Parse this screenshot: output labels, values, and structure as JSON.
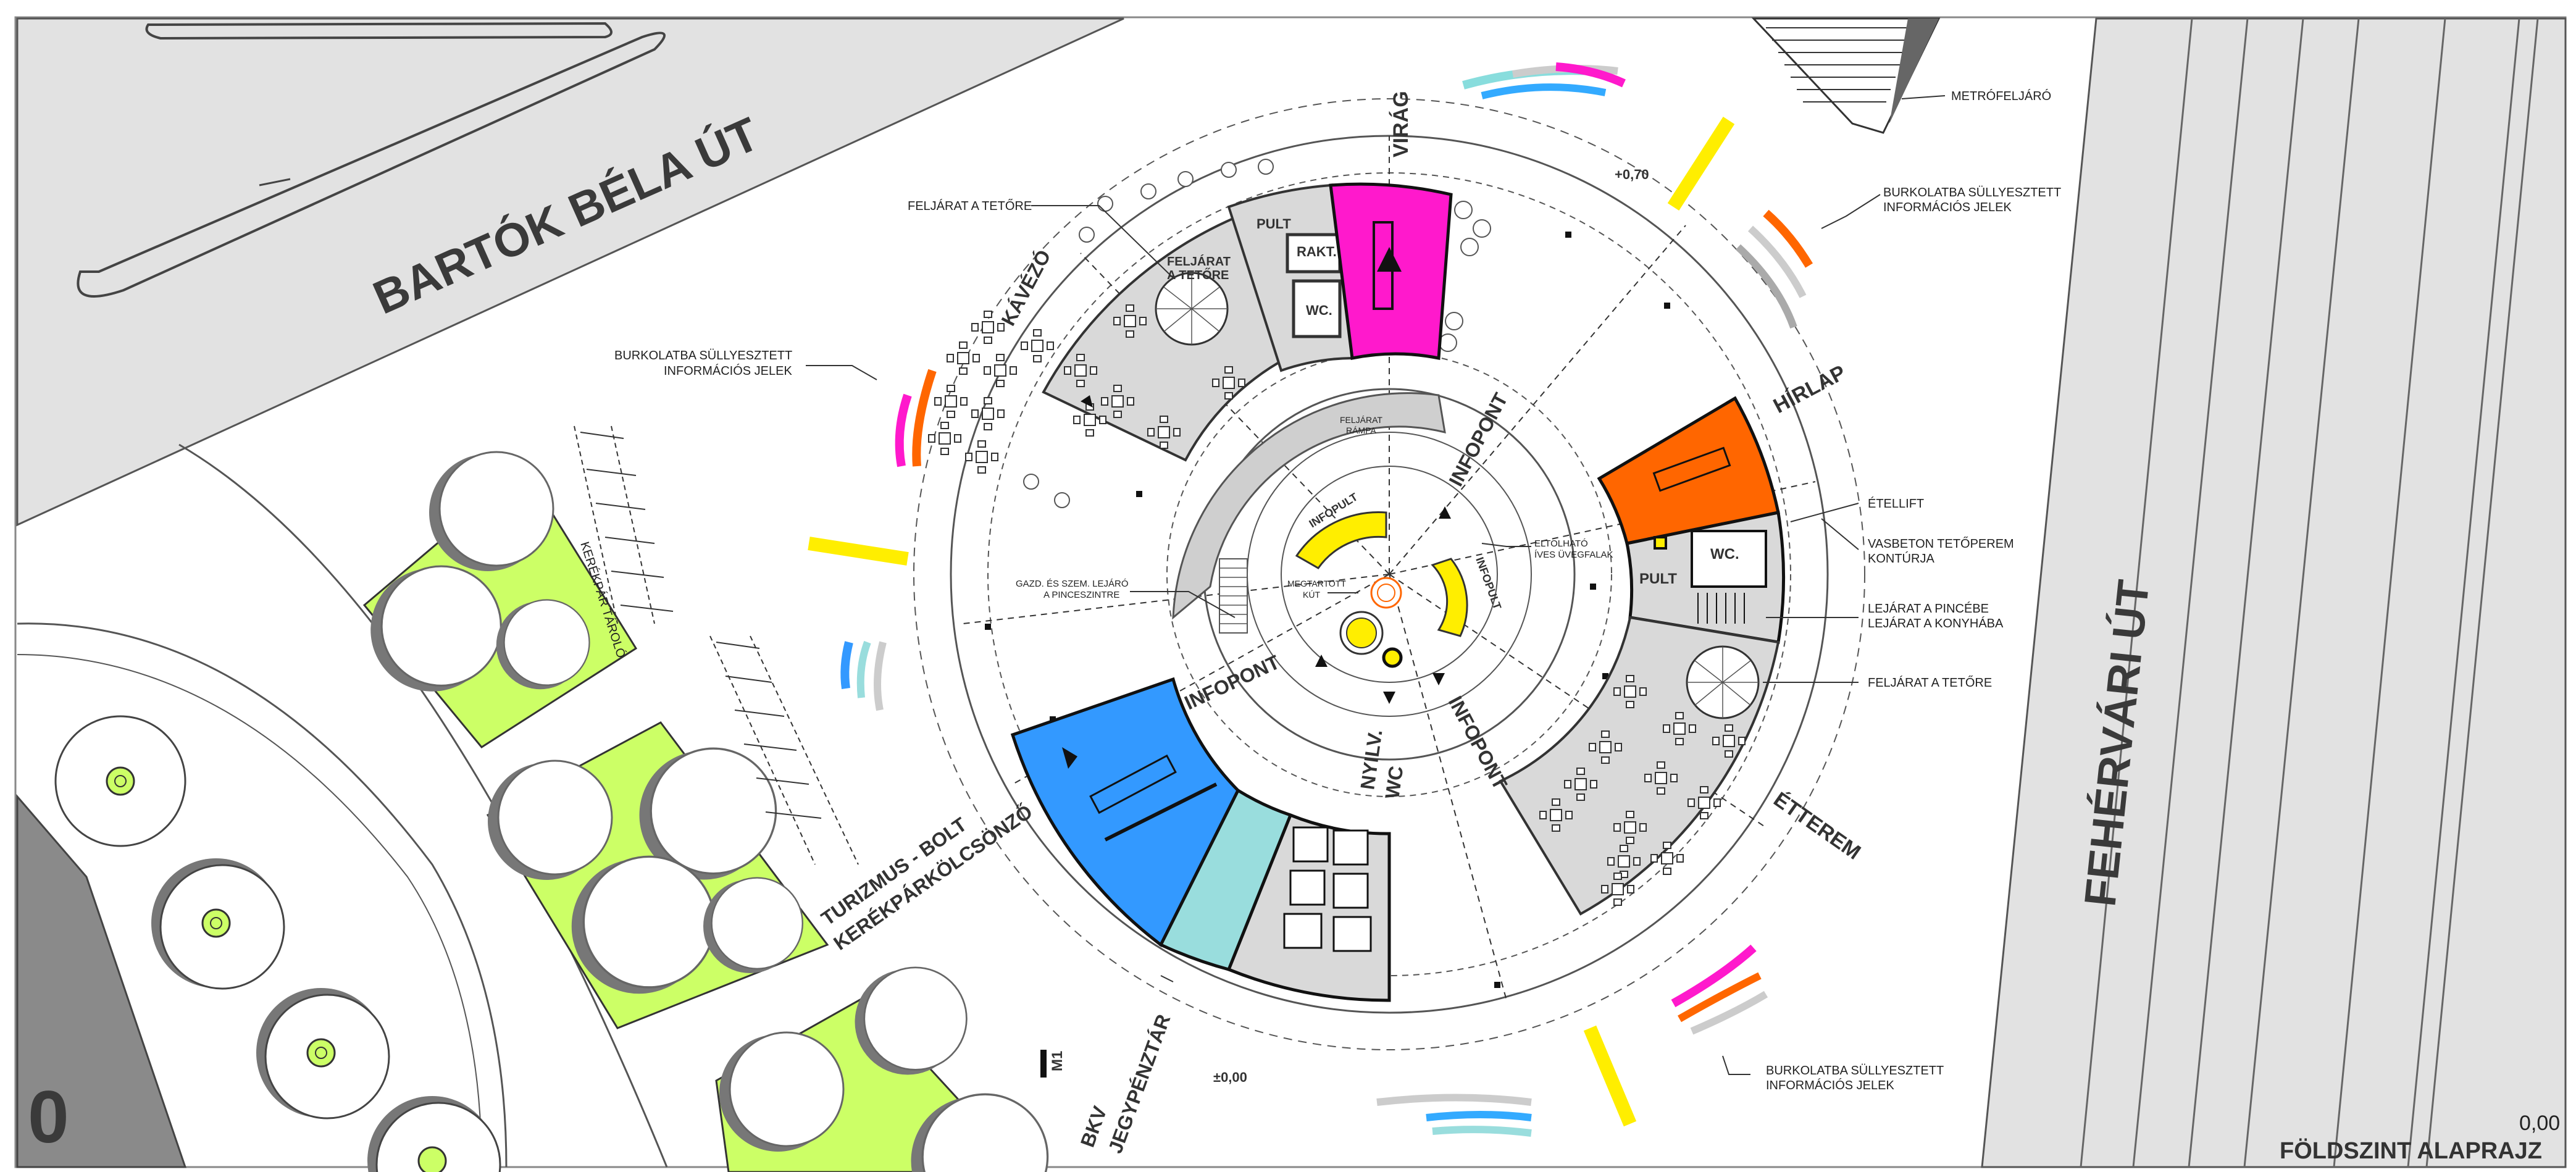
{
  "plan": {
    "title": "FÖLDSZINT ALAPRAJZ",
    "level_value": "0,00",
    "level_number": "0",
    "scale_label": "M1"
  },
  "streets": {
    "bartok": "BARTÓK BÉLA ÚT",
    "feherv": "FEHÉRVÁRI ÚT"
  },
  "levels": {
    "upper": "+0,70",
    "ground": "±0,00"
  },
  "zones": {
    "virag": "VIRÁG",
    "kavezo": "KÁVÉZÓ",
    "hirlap": "HÍRLAP",
    "etterem": "ÉTTEREM",
    "infopont_a": "INFOPONT",
    "infopont_b": "INFOPONT",
    "infopont_c": "INFOPONT",
    "nyilv": "NYILV.",
    "wc_public": "WC",
    "turizmus_1": "TURIZMUS - BOLT",
    "turizmus_2": "KERÉKPÁRKÖLCSÖNZŐ",
    "bkv_1": "BKV",
    "bkv_2": "JEGYPÉNZTÁR",
    "kerekpar": "KERÉKPÁR TÁROLÓ"
  },
  "rooms": {
    "pult_top": "PULT",
    "rakt": "RAKT.",
    "wc_top": "WC.",
    "feljarat_1": "FELJÁRAT",
    "feljarat_2": "A TETŐRE",
    "pult_right": "PULT",
    "wc_right": "WC.",
    "ramp_1": "FELJÁRAT",
    "ramp_2": "RÁMPA",
    "infopult_1": "INFOPULT",
    "infopult_2": "INFOPULT",
    "kut_1": "MEGTARTOTT",
    "kut_2": "KÚT"
  },
  "annotations": {
    "metro": "METRÓFELJÁRÓ",
    "info_tr_1": "BURKOLATBA SÜLLYESZTETT",
    "info_tr_2": "INFORMÁCIÓS JELEK",
    "feljarat_top": "FELJÁRAT A TETŐRE",
    "info_l_1": "BURKOLATBA SÜLLYESZTETT",
    "info_l_2": "INFORMÁCIÓS JELEK",
    "etellift": "ÉTELLIFT",
    "vasbeton_1": "VASBETON TETŐPEREM",
    "vasbeton_2": "KONTÚRJA",
    "eltol_1": "ELTOLHATÓ",
    "eltol_2": "ÍVES ÜVEGFALAK",
    "lejarat_1": "LEJÁRAT A PINCÉBE",
    "lejarat_2": "LEJÁRAT A KONYHÁBA",
    "feljarat_right": "FELJÁRAT A TETŐRE",
    "gazd_1": "GAZD. ÉS SZEM. LEJÁRÓ",
    "gazd_2": "A PINCESZINTRE",
    "info_br_1": "BURKOLATBA SÜLLYESZTETT",
    "info_br_2": "INFORMÁCIÓS JELEK"
  },
  "colors": {
    "virag": "#ff19cc",
    "hirlap": "#ff6600",
    "turizmus": "#3399ff",
    "bkv": "#99dddd",
    "lawn": "#ccff66",
    "infopult": "#ffee00",
    "street_gray": "#e2e2e2",
    "seat_gray": "#cfcfcf"
  }
}
